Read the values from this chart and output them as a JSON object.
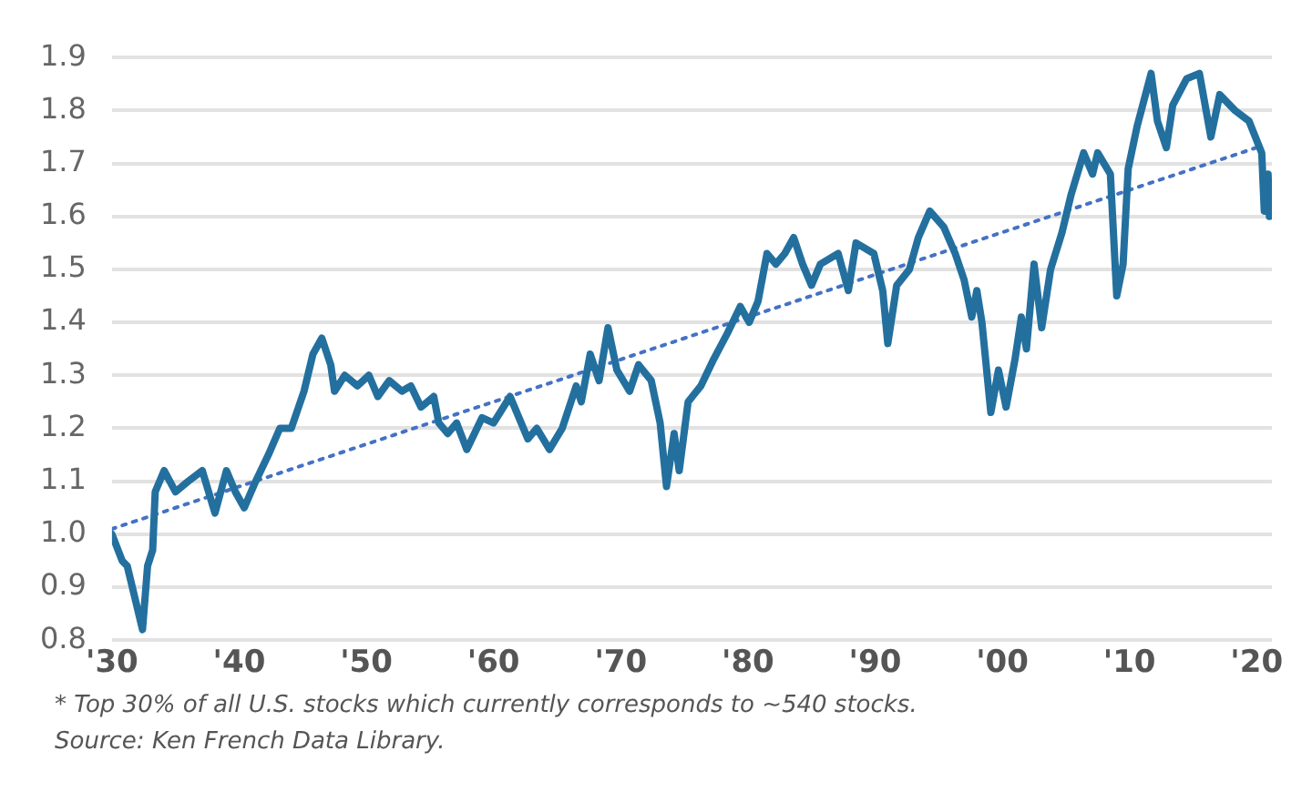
{
  "chart_data": {
    "type": "line",
    "x": [
      1930,
      1930.8,
      1931.2,
      1931.8,
      1932.4,
      1932.8,
      1933.2,
      1933.4,
      1934.1,
      1935,
      1936,
      1937.1,
      1938.1,
      1939,
      1939.7,
      1940.4,
      1941.3,
      1942.3,
      1943.2,
      1944.1,
      1945.1,
      1945.8,
      1946.5,
      1947.2,
      1947.5,
      1948.3,
      1949.3,
      1950.2,
      1950.9,
      1951.8,
      1952.8,
      1953.5,
      1954.3,
      1955.3,
      1955.7,
      1956.4,
      1957.1,
      1957.9,
      1959.1,
      1960,
      1961.3,
      1962.7,
      1963.4,
      1964.4,
      1965.4,
      1966.5,
      1966.9,
      1967.6,
      1968.3,
      1969,
      1969.7,
      1970.7,
      1971.4,
      1972.4,
      1973.1,
      1973.6,
      1974.2,
      1974.6,
      1975.3,
      1976.3,
      1977.3,
      1978.4,
      1979.4,
      1980.1,
      1980.8,
      1981.5,
      1982.2,
      1982.9,
      1983.6,
      1984.3,
      1985,
      1985.7,
      1987.1,
      1987.9,
      1988.5,
      1989.9,
      1990.6,
      1991,
      1991.7,
      1992.7,
      1993.4,
      1994.3,
      1995.4,
      1996.3,
      1997,
      1997.6,
      1998,
      1998.4,
      1999.1,
      1999.7,
      2000.3,
      2001,
      2001.5,
      2001.9,
      2002.5,
      2003.1,
      2003.8,
      2004.7,
      2005.4,
      2006.4,
      2007.1,
      2007.5,
      2008.5,
      2009,
      2009.5,
      2009.9,
      2010.6,
      2011.7,
      2012.2,
      2012.9,
      2013.4,
      2014.5,
      2015.5,
      2016.4,
      2017.1,
      2018.3,
      2019.4,
      2020.4,
      2020.6,
      2020.9,
      2021.0
    ],
    "series": [
      {
        "color": "#23709f",
        "line_style": "solid",
        "values": [
          1.0,
          0.95,
          0.94,
          0.88,
          0.82,
          0.94,
          0.97,
          1.08,
          1.12,
          1.08,
          1.1,
          1.12,
          1.04,
          1.12,
          1.08,
          1.05,
          1.1,
          1.15,
          1.2,
          1.2,
          1.27,
          1.34,
          1.37,
          1.32,
          1.27,
          1.3,
          1.28,
          1.3,
          1.26,
          1.29,
          1.27,
          1.28,
          1.24,
          1.26,
          1.21,
          1.19,
          1.21,
          1.16,
          1.22,
          1.21,
          1.26,
          1.18,
          1.2,
          1.16,
          1.2,
          1.28,
          1.25,
          1.34,
          1.29,
          1.39,
          1.31,
          1.27,
          1.32,
          1.29,
          1.21,
          1.09,
          1.19,
          1.12,
          1.25,
          1.28,
          1.33,
          1.38,
          1.43,
          1.4,
          1.44,
          1.53,
          1.51,
          1.53,
          1.56,
          1.51,
          1.47,
          1.51,
          1.53,
          1.46,
          1.55,
          1.53,
          1.46,
          1.36,
          1.47,
          1.5,
          1.56,
          1.61,
          1.58,
          1.53,
          1.48,
          1.41,
          1.46,
          1.4,
          1.23,
          1.31,
          1.24,
          1.33,
          1.41,
          1.35,
          1.51,
          1.39,
          1.5,
          1.57,
          1.64,
          1.72,
          1.68,
          1.72,
          1.68,
          1.45,
          1.51,
          1.69,
          1.77,
          1.87,
          1.78,
          1.73,
          1.81,
          1.86,
          1.87,
          1.75,
          1.83,
          1.8,
          1.78,
          1.72,
          1.61,
          1.68,
          1.6
        ]
      },
      {
        "color": "#4472c4",
        "line_style": "dotted",
        "x": [
          1930,
          2020
        ],
        "values": [
          1.01,
          1.73
        ]
      }
    ],
    "xlim": [
      1930,
      2021.2
    ],
    "xticks": [
      {
        "value": 1930,
        "label": "'30"
      },
      {
        "value": 1940,
        "label": "'40"
      },
      {
        "value": 1950,
        "label": "'50"
      },
      {
        "value": 1960,
        "label": "'60"
      },
      {
        "value": 1970,
        "label": "'70"
      },
      {
        "value": 1980,
        "label": "'80"
      },
      {
        "value": 1990,
        "label": "'90"
      },
      {
        "value": 2000,
        "label": "'00"
      },
      {
        "value": 2010,
        "label": "'10"
      },
      {
        "value": 2020,
        "label": "'20"
      }
    ],
    "ylim": [
      0.8,
      1.9
    ],
    "yticks": [
      0.8,
      {
        "value": 0.9,
        "label": "0.9"
      },
      {
        "value": 1.0,
        "label": "1.0"
      },
      1.1,
      1.2,
      1.3,
      1.4,
      1.5,
      1.6,
      1.7,
      1.8,
      1.9
    ],
    "grid": "y",
    "legend": false,
    "marker": "none",
    "annotations": [
      "* Top 30% of all U.S. stocks which currently corresponds to ~540 stocks.",
      "Source: Ken French Data Library."
    ]
  }
}
